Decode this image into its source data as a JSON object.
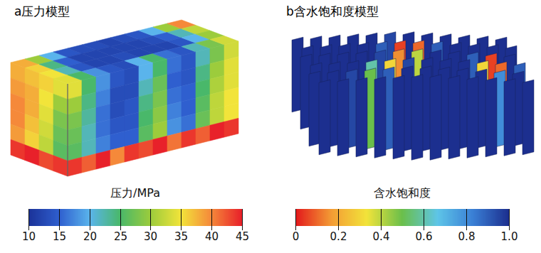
{
  "chart_data": [
    {
      "type": "3d_block",
      "title": "a压力模型",
      "top": [
        [
          38,
          30,
          20,
          14,
          13,
          13,
          12,
          13,
          14,
          20,
          30,
          40
        ],
        [
          36,
          24,
          15,
          12,
          12,
          12,
          12,
          12,
          13,
          15,
          22,
          32
        ],
        [
          35,
          22,
          14,
          12,
          12,
          13,
          12,
          12,
          12,
          14,
          20,
          30
        ],
        [
          34,
          25,
          18,
          14,
          13,
          20,
          25,
          16,
          14,
          22,
          28,
          33
        ]
      ],
      "front": [
        [
          34,
          25,
          18,
          14,
          13,
          20,
          25,
          16,
          14,
          22,
          28,
          33
        ],
        [
          30,
          24,
          17,
          13,
          13,
          22,
          27,
          15,
          14,
          24,
          30,
          34
        ],
        [
          28,
          23,
          16,
          13,
          14,
          24,
          28,
          16,
          15,
          25,
          31,
          34
        ],
        [
          27,
          22,
          16,
          14,
          14,
          25,
          29,
          17,
          15,
          26,
          32,
          35
        ],
        [
          26,
          22,
          17,
          15,
          15,
          26,
          30,
          18,
          16,
          27,
          32,
          35
        ],
        [
          44,
          42,
          45,
          40,
          44,
          43,
          45,
          41,
          44,
          42,
          45,
          44
        ]
      ],
      "side": [
        [
          38,
          37,
          36,
          34
        ],
        [
          39,
          38,
          35,
          30
        ],
        [
          40,
          38,
          34,
          28
        ],
        [
          40,
          37,
          33,
          27
        ],
        [
          39,
          36,
          32,
          26
        ],
        [
          44,
          45,
          43,
          44
        ]
      ],
      "colorbar_label": "压力/MPa",
      "colorbar_range": [
        10,
        45
      ],
      "colorbar_ticks": [
        10,
        15,
        20,
        25,
        30,
        35,
        40,
        45
      ],
      "colors": [
        "#1b3399",
        "#2f5fcf",
        "#5ab4ec",
        "#49b86a",
        "#9ccc3c",
        "#f2e43a",
        "#f5893a",
        "#e8212a"
      ]
    },
    {
      "type": "3d_fence",
      "title": "b含水饱和度模型",
      "fences": [
        [
          1,
          1,
          1,
          1,
          1,
          0.95,
          1,
          1,
          1,
          1,
          1,
          1
        ],
        [
          1,
          1,
          1,
          1,
          0.9,
          0.05,
          0.1,
          0.9,
          1,
          1,
          1,
          1
        ],
        [
          1,
          1,
          1,
          1,
          0.95,
          0.15,
          0.4,
          1,
          1,
          0.9,
          0.05,
          1
        ],
        [
          1,
          1,
          1,
          0.6,
          0.3,
          0.95,
          1,
          1,
          1,
          0.3,
          0.1,
          0.9
        ],
        [
          1,
          1,
          0.95,
          0.5,
          0.9,
          1,
          1,
          1,
          1,
          1,
          0.8,
          1
        ],
        [
          1,
          1,
          1,
          1,
          1,
          1,
          1,
          1,
          1,
          1,
          1,
          1
        ]
      ],
      "colorbar_label": "含水饱和度",
      "colorbar_range": [
        0,
        1
      ],
      "colorbar_ticks": [
        0,
        0.2,
        0.4,
        0.6,
        0.8,
        {
          "value": 1,
          "label": "1.0"
        }
      ],
      "colors": [
        "#e31a1c",
        "#f39c34",
        "#f2e43a",
        "#6abf4b",
        "#5ec5e8",
        "#3a7fd5",
        "#1c2f8f"
      ]
    }
  ]
}
